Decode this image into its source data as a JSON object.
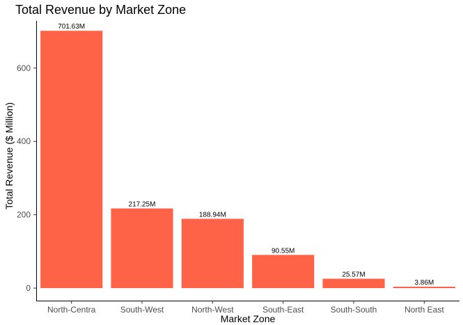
{
  "chart_data": {
    "type": "bar",
    "title": "Total Revenue by Market Zone",
    "xlabel": "Market Zone",
    "ylabel": "Total Revenue ($ Million)",
    "categories": [
      "North-Centra",
      "South-West",
      "North-West",
      "South-East",
      "South-South",
      "North East"
    ],
    "values": [
      701.63,
      217.25,
      188.94,
      90.55,
      25.57,
      3.86
    ],
    "data_labels": [
      "701.63M",
      "217.25M",
      "188.94M",
      "90.55M",
      "25.57M",
      "3.86M"
    ],
    "yticks": [
      0,
      200,
      400,
      600
    ],
    "ylim": [
      0,
      736.71
    ],
    "grid": false,
    "legend": "none",
    "bar_color": "#FF6347"
  }
}
